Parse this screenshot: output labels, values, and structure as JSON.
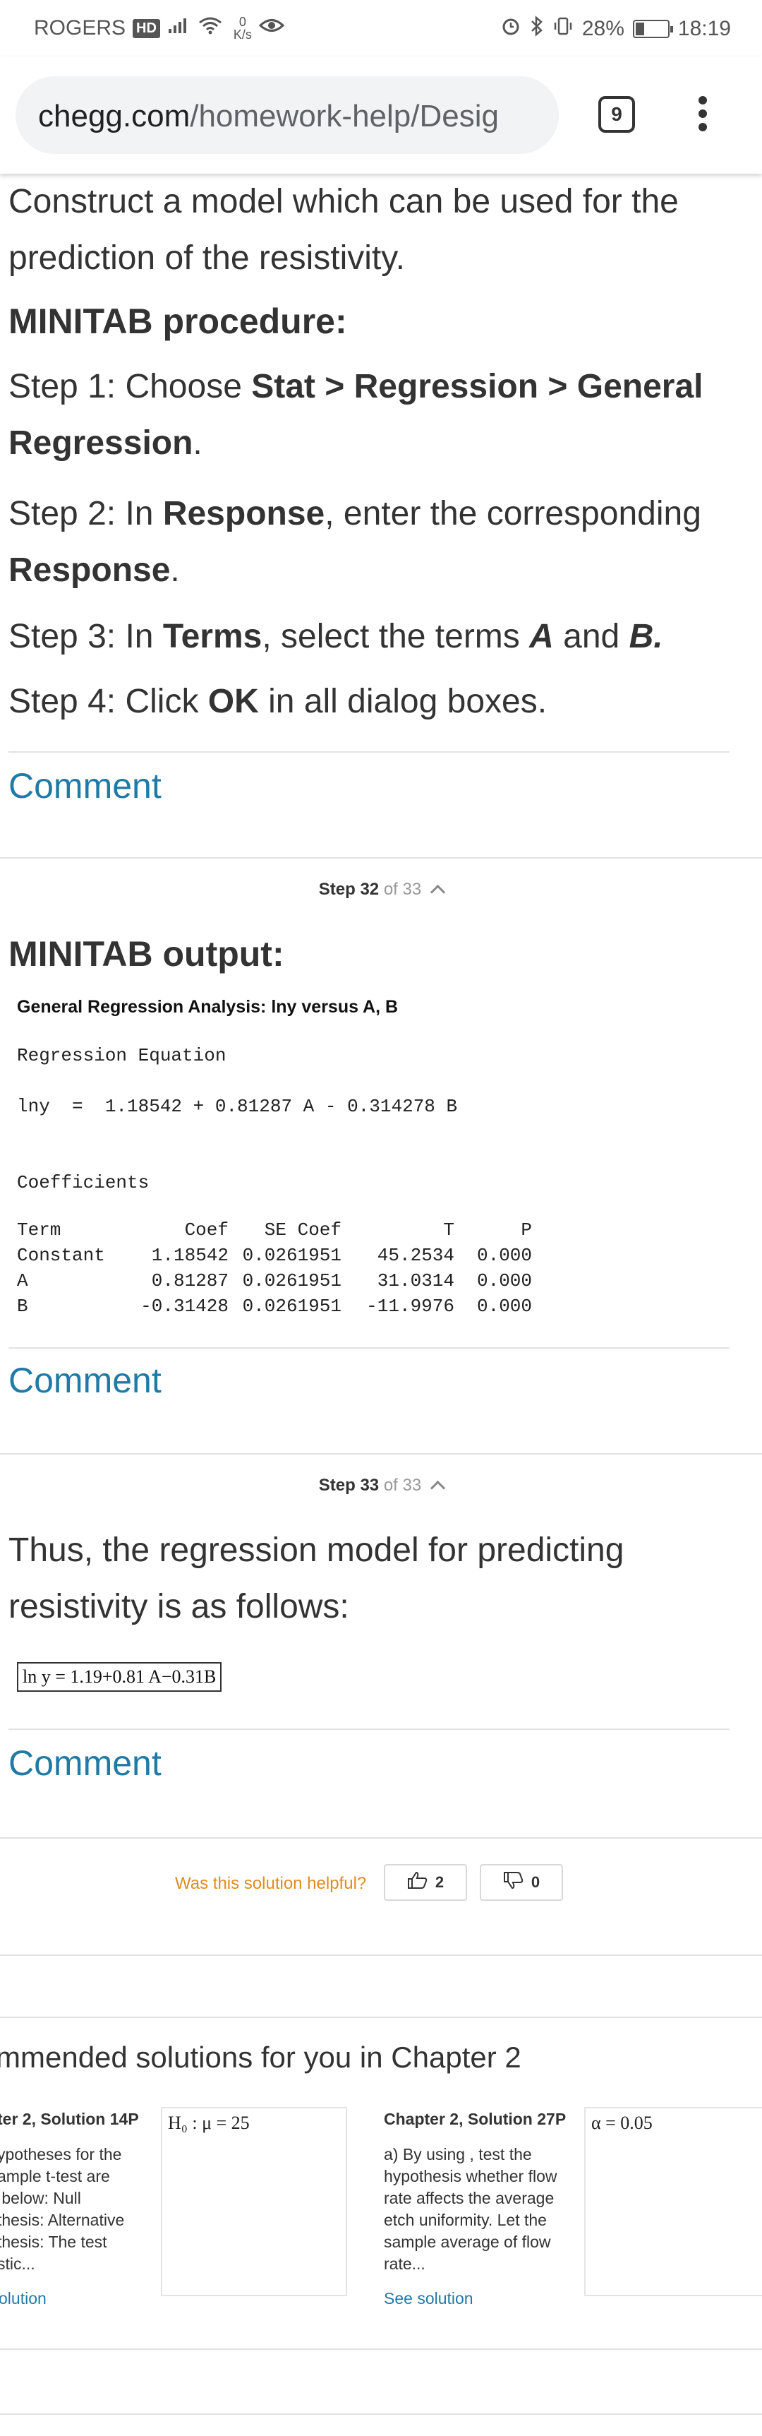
{
  "status_bar": {
    "carrier": "ROGERS",
    "hd_badge": "HD",
    "speed_value": "0",
    "speed_unit": "K/s",
    "battery": "28%",
    "battery_level": 0.28,
    "time": "18:19"
  },
  "browser": {
    "url_domain": "chegg.com",
    "url_path": "/homework-help/Desig",
    "tab_count": "9"
  },
  "step31": {
    "intro": "Construct a model which can be used for the prediction of the resistivity.",
    "heading": "MINITAB procedure:",
    "steps": [
      {
        "prefix": "Step 1: Choose ",
        "bold": "Stat > Regression > General Regression",
        "suffix": "."
      },
      {
        "prefix": "Step 2: In ",
        "bold": "Response",
        "middle": ", enter the corresponding ",
        "bold2": "Response",
        "suffix": "."
      },
      {
        "prefix": "Step 3: In ",
        "bold": "Terms",
        "middle": ", select the terms ",
        "bold_a": "A",
        "and": " and ",
        "bold_b": "B."
      },
      {
        "prefix": "Step 4: Click ",
        "bold": "OK",
        "suffix": " in all dialog boxes."
      }
    ],
    "comment": "Comment"
  },
  "step32": {
    "label_step": "Step 32",
    "label_of": "of 33",
    "heading": "MINITAB output:",
    "analysis_title": "General Regression Analysis: lny versus A, B",
    "reg_eq_label": "Regression Equation",
    "reg_eq": "lny  =  1.18542 + 0.81287 A - 0.314278 B",
    "coef_label": "Coefficients",
    "table_header": [
      "Term",
      "Coef",
      "SE Coef",
      "T",
      "P"
    ],
    "table_rows": [
      [
        "Constant",
        "1.18542",
        "0.0261951",
        "45.2534",
        "0.000"
      ],
      [
        "A",
        "0.81287",
        "0.0261951",
        "31.0314",
        "0.000"
      ],
      [
        "B",
        "-0.31428",
        "0.0261951",
        "-11.9976",
        "0.000"
      ]
    ],
    "comment": "Comment"
  },
  "step33": {
    "label_step": "Step 33",
    "label_of": "of 33",
    "text": "Thus, the regression model for predicting resistivity is as follows:",
    "answer": "ln y =  1.19+0.81 A−0.31B",
    "comment": "Comment"
  },
  "feedback": {
    "question": "Was this solution helpful?",
    "up_count": "2",
    "down_count": "0"
  },
  "recommendations": {
    "title": "mmended solutions for you in Chapter 2",
    "cards": [
      {
        "title": "ter 2, Solution 14P",
        "lines": [
          "ypotheses for the",
          "ample t-test are",
          " below: Null",
          "thesis: Alternative",
          "thesis: The test",
          "stic..."
        ],
        "link": "olution",
        "thumb": "H₀ : μ = 25"
      },
      {
        "title": "Chapter 2, Solution 27P",
        "lines": [
          "a) By using , test the",
          "hypothesis whether flow",
          "rate affects the average",
          "etch uniformity. Let the",
          "sample average of flow",
          "rate..."
        ],
        "link": "See solution",
        "thumb": "α = 0.05"
      }
    ]
  }
}
